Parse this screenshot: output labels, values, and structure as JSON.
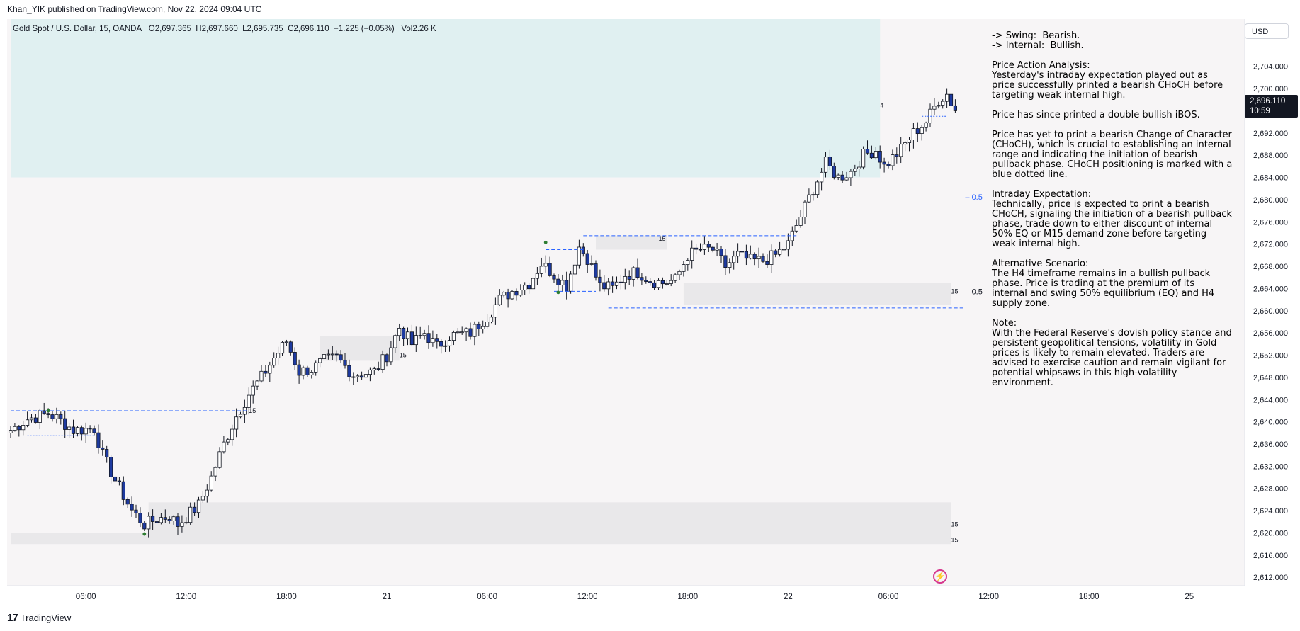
{
  "header": {
    "published_by": "Khan_YIK published on TradingView.com, Nov 22, 2024 09:04 UTC"
  },
  "symbol": {
    "name": "Gold Spot / U.S. Dollar, 15, OANDA",
    "open": "O2,697.365",
    "high": "H2,697.660",
    "low": "L2,695.735",
    "close": "C2,696.110",
    "change": "−1.225 (−0.05%)",
    "volume": "Vol2.26 K"
  },
  "currency_button": "USD",
  "last_price": {
    "price": "2,696.110",
    "countdown": "10:59"
  },
  "notes": {
    "swing": "-> Swing:  Bearish.",
    "internal": "-> Internal:  Bullish.",
    "pa_title": "Price Action Analysis:",
    "pa_text": "Yesterday's intraday expectation played out as price successfully printed a bearish CHoCH before targeting weak internal high.",
    "ibos": "Price has since printed a double bullish iBOS.",
    "choch_text": "Price has yet to print a bearish Change of Character (CHoCH), which is crucial to establishing an internal range and indicating the initiation of bearish pullback phase. CHoCH positioning is marked with a blue dotted line.",
    "ie_title": "Intraday Expectation:",
    "ie_text": "Technically, price is expected to print a bearish CHoCH, signaling the initiation of a bearish pullback phase, trade down to either discount of internal 50% EQ or M15 demand zone before targeting weak internal high.",
    "alt_title": "Alternative Scenario:",
    "alt_text": "The H4 timeframe remains in a bullish pullback phase. Price is trading at the premium of its internal and swing 50% equilibrium (EQ) and H4 supply zone.",
    "note_title": "Note:",
    "note_text": "With the Federal Reserve's dovish policy stance and persistent geopolitical tensions, volatility in Gold prices is likely to remain elevated. Traders are advised to exercise caution and remain vigilant for potential whipsaws in this high-volatility environment."
  },
  "footer": {
    "brand": "TradingView"
  },
  "chart_data": {
    "type": "candlestick",
    "y_ticks": [
      "2,704.000",
      "2,700.000",
      "2,696.000",
      "2,692.000",
      "2,688.000",
      "2,684.000",
      "2,680.000",
      "2,676.000",
      "2,672.000",
      "2,668.000",
      "2,664.000",
      "2,660.000",
      "2,656.000",
      "2,652.000",
      "2,648.000",
      "2,644.000",
      "2,640.000",
      "2,636.000",
      "2,632.000",
      "2,628.000",
      "2,624.000",
      "2,620.000",
      "2,616.000",
      "2,612.000"
    ],
    "y_tick_values": [
      2704,
      2700,
      2696,
      2692,
      2688,
      2684,
      2680,
      2676,
      2672,
      2668,
      2664,
      2660,
      2656,
      2652,
      2648,
      2644,
      2640,
      2636,
      2632,
      2628,
      2624,
      2620,
      2616,
      2612
    ],
    "ylim": [
      2610.5,
      2712.5
    ],
    "x_ticks": [
      {
        "label": "06:00",
        "bar": 18
      },
      {
        "label": "12:00",
        "bar": 42
      },
      {
        "label": "18:00",
        "bar": 66
      },
      {
        "label": "21",
        "bar": 90
      },
      {
        "label": "06:00",
        "bar": 114
      },
      {
        "label": "12:00",
        "bar": 138
      },
      {
        "label": "18:00",
        "bar": 162
      },
      {
        "label": "22",
        "bar": 186
      },
      {
        "label": "06:00",
        "bar": 210
      },
      {
        "label": "12:00",
        "bar": 234
      },
      {
        "label": "18:00",
        "bar": 258
      },
      {
        "label": "25",
        "bar": 282
      }
    ],
    "bars_visible": 290,
    "candle_path": [
      [
        0,
        2638.5
      ],
      [
        4,
        2640.5
      ],
      [
        9,
        2641.5
      ],
      [
        12,
        2640.2
      ],
      [
        15,
        2638.5
      ],
      [
        20,
        2638.8
      ],
      [
        22,
        2634
      ],
      [
        25,
        2629.5
      ],
      [
        29,
        2624
      ],
      [
        32,
        2621.5
      ],
      [
        35,
        2622.5
      ],
      [
        38,
        2623
      ],
      [
        40,
        2621.5
      ],
      [
        45,
        2625
      ],
      [
        48,
        2630
      ],
      [
        51,
        2636
      ],
      [
        54,
        2641
      ],
      [
        57,
        2645
      ],
      [
        60,
        2648
      ],
      [
        63,
        2651.5
      ],
      [
        66,
        2654.5
      ],
      [
        69,
        2649
      ],
      [
        72,
        2649.5
      ],
      [
        75,
        2651
      ],
      [
        78,
        2651.5
      ],
      [
        82,
        2648.5
      ],
      [
        87,
        2649
      ],
      [
        90,
        2652
      ],
      [
        93,
        2657
      ],
      [
        96,
        2654
      ],
      [
        99,
        2656
      ],
      [
        102,
        2653.5
      ],
      [
        105,
        2655.5
      ],
      [
        110,
        2656
      ],
      [
        114,
        2659
      ],
      [
        117,
        2662
      ],
      [
        120,
        2663.5
      ],
      [
        124,
        2665
      ],
      [
        127,
        2668.5
      ],
      [
        130,
        2666.5
      ],
      [
        133,
        2664.5
      ],
      [
        136,
        2671.5
      ],
      [
        138,
        2669.5
      ],
      [
        141,
        2664.5
      ],
      [
        144,
        2664
      ],
      [
        147,
        2666.5
      ],
      [
        150,
        2667
      ],
      [
        153,
        2665.5
      ],
      [
        156,
        2665
      ],
      [
        159,
        2665.5
      ],
      [
        162,
        2670
      ],
      [
        165,
        2671
      ],
      [
        168,
        2671
      ],
      [
        171,
        2668
      ],
      [
        174,
        2670
      ],
      [
        177,
        2669
      ],
      [
        180,
        2669
      ],
      [
        183,
        2670
      ],
      [
        186,
        2672
      ],
      [
        189,
        2677
      ],
      [
        192,
        2682
      ],
      [
        195,
        2686.5
      ],
      [
        198,
        2684
      ],
      [
        201,
        2685
      ],
      [
        204,
        2688
      ],
      [
        207,
        2689
      ],
      [
        209,
        2686
      ],
      [
        213,
        2689
      ],
      [
        216,
        2692
      ],
      [
        219,
        2694
      ],
      [
        222,
        2698
      ],
      [
        224,
        2699
      ],
      [
        226,
        2696
      ]
    ],
    "series": [
      {
        "name": "XAU/USD 15m"
      }
    ],
    "last": 2696.11,
    "zones": [
      {
        "kind": "supply",
        "x0": 0,
        "x1": 208,
        "y_top": 2712.5,
        "y_bottom": 2684
      },
      {
        "kind": "demand",
        "label": "15",
        "x0": 74,
        "x1": 93,
        "y_top": 2655.5,
        "y_bottom": 2651
      },
      {
        "kind": "demand",
        "label": "15",
        "x0": 140,
        "x1": 157,
        "y_top": 2673.5,
        "y_bottom": 2671
      },
      {
        "kind": "demand",
        "label": "15",
        "x0": 161,
        "x1": 225,
        "y_top": 2665,
        "y_bottom": 2661
      },
      {
        "kind": "demand",
        "label": "15",
        "x0": 33,
        "x1": 225,
        "y_top": 2625.5,
        "y_bottom": 2619
      },
      {
        "kind": "demand",
        "label": "15",
        "x0": 0,
        "x1": 225,
        "y_top": 2620,
        "y_bottom": 2618
      }
    ],
    "labels": [
      {
        "text": "4",
        "bar": 208,
        "y": 2697
      },
      {
        "text": "15",
        "bar": 57,
        "y": 2642
      },
      {
        "text": "15",
        "bar": 155,
        "y": 2673
      },
      {
        "text": "15",
        "bar": 225,
        "y": 2663.5
      },
      {
        "text": "15",
        "bar": 225,
        "y": 2621.5
      },
      {
        "text": "15",
        "bar": 225,
        "y": 2618.7
      },
      {
        "text": "15",
        "bar": 93,
        "y": 2652
      }
    ],
    "eq_labels": [
      {
        "text": "– 0.5",
        "bar": 226,
        "y": 2680.5,
        "color": "#2962ff"
      },
      {
        "text": "– 0.5",
        "bar": 226,
        "y": 2663.5,
        "color": "#131722"
      }
    ],
    "lines": [
      {
        "x0": 0,
        "x1": 57,
        "y": 2642,
        "dash": "5,3"
      },
      {
        "x0": 128,
        "x1": 137,
        "y": 2671,
        "dash": "5,3"
      },
      {
        "x0": 137,
        "x1": 188,
        "y": 2673.5,
        "dash": "5,3"
      },
      {
        "x0": 130,
        "x1": 140,
        "y": 2663.5,
        "dash": "5,3"
      },
      {
        "x0": 143,
        "x1": 228,
        "y": 2660.5,
        "dash": "5,3"
      },
      {
        "x0": 4,
        "x1": 20,
        "y": 2637.5,
        "dash": "2,2"
      },
      {
        "x0": 218,
        "x1": 224,
        "y": 2695,
        "dash": "2,2"
      }
    ],
    "swing_points": [
      {
        "bar": 9,
        "y": 2642
      },
      {
        "bar": 32,
        "y": 2619.8
      },
      {
        "bar": 128,
        "y": 2672.3
      },
      {
        "bar": 131,
        "y": 2663.3
      }
    ]
  }
}
